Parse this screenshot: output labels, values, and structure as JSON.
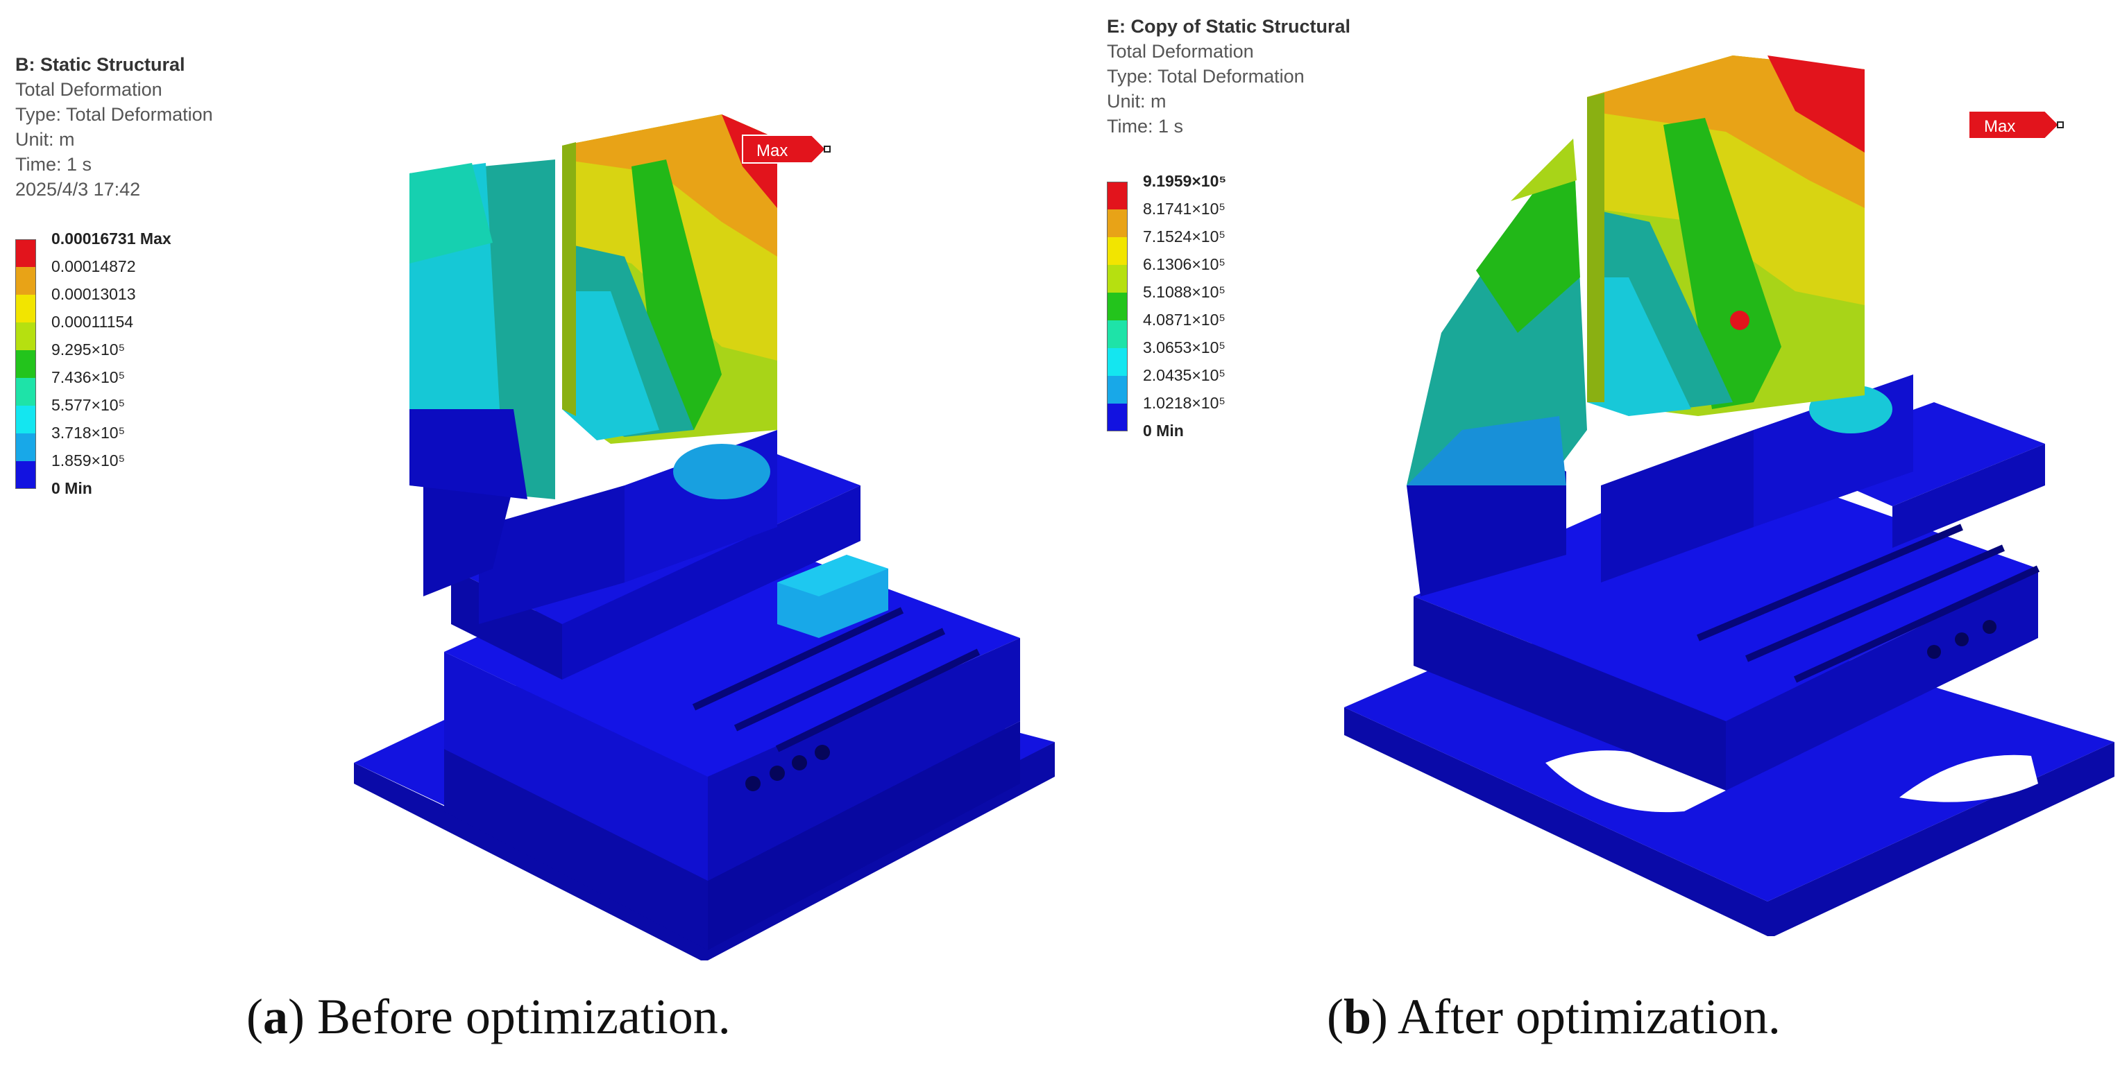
{
  "panels": [
    {
      "id": "a",
      "info": [
        "B: Static Structural",
        "Total Deformation",
        "Type: Total Deformation",
        "Unit: m",
        "Time: 1 s",
        "2025/4/3 17:42"
      ],
      "legend": [
        {
          "label": "0.00016731 Max",
          "color": "#e2141c"
        },
        {
          "label": "0.00014872",
          "color": "#e8a317"
        },
        {
          "label": "0.00013013",
          "color": "#f2e500"
        },
        {
          "label": "0.00011154",
          "color": "#b6e010"
        },
        {
          "label": "9.295×10⁵",
          "color": "#23c41c"
        },
        {
          "label": "7.436×10⁵",
          "color": "#1ee3a8"
        },
        {
          "label": "5.577×10⁵",
          "color": "#14e6f0"
        },
        {
          "label": "3.718×10⁵",
          "color": "#18a8e8"
        },
        {
          "label": "1.859×10⁵",
          "color": "#1212e0"
        }
      ],
      "legend_last": "0 Min",
      "max_tag": "Max",
      "caption_letter": "a",
      "caption_text": "Before optimization."
    },
    {
      "id": "b",
      "info": [
        "E: Copy of Static Structural",
        "Total Deformation",
        "Type: Total Deformation",
        "Unit: m",
        "Time: 1 s"
      ],
      "legend": [
        {
          "label": "9.1959×10⁵",
          "color": "#e2141c"
        },
        {
          "label": "8.1741×10⁵",
          "color": "#e8a317"
        },
        {
          "label": "7.1524×10⁵",
          "color": "#f2e500"
        },
        {
          "label": "6.1306×10⁵",
          "color": "#b6e010"
        },
        {
          "label": "5.1088×10⁵",
          "color": "#23c41c"
        },
        {
          "label": "4.0871×10⁵",
          "color": "#1ee3a8"
        },
        {
          "label": "3.0653×10⁵",
          "color": "#14e6f0"
        },
        {
          "label": "2.0435×10⁵",
          "color": "#18a8e8"
        },
        {
          "label": "1.0218×10⁵",
          "color": "#1212e0"
        }
      ],
      "legend_last": "0  Min",
      "max_tag": "Max",
      "caption_letter": "b",
      "caption_text": "After optimization."
    }
  ],
  "colors": {
    "base_blue": "#1010d8",
    "base_blue_dark": "#0a0aa8",
    "base_blue_shadow": "#06067a",
    "red": "#e2141c",
    "orange": "#e8a317",
    "yellow": "#d8d412",
    "lime": "#a8d418",
    "green": "#22b818",
    "teal": "#1aa898",
    "cyan": "#18c8d8",
    "sky": "#1890d8"
  }
}
